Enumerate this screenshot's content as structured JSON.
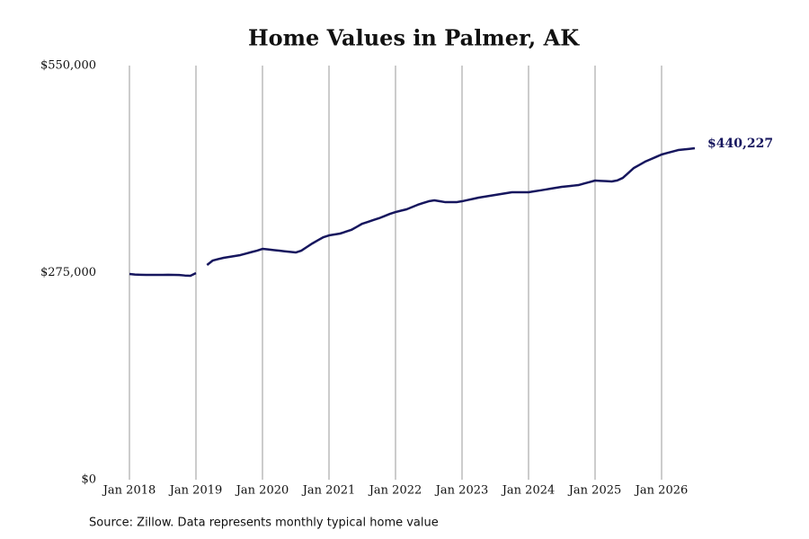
{
  "chart_data": {
    "type": "line",
    "title": "Home Values in Palmer, AK",
    "source": "Source: Zillow. Data represents monthly typical home value",
    "x": [
      "2018-01",
      "2018-02",
      "2018-03",
      "2018-04",
      "2018-05",
      "2018-06",
      "2018-07",
      "2018-08",
      "2018-09",
      "2018-10",
      "2018-11",
      "2018-12",
      "2019-01",
      "2019-02",
      "2019-03",
      "2019-04",
      "2019-05",
      "2019-06",
      "2019-07",
      "2019-08",
      "2019-09",
      "2019-10",
      "2019-11",
      "2019-12",
      "2020-01",
      "2020-02",
      "2020-03",
      "2020-04",
      "2020-05",
      "2020-06",
      "2020-07",
      "2020-08",
      "2020-09",
      "2020-10",
      "2020-11",
      "2020-12",
      "2021-01",
      "2021-02",
      "2021-03",
      "2021-04",
      "2021-05",
      "2021-06",
      "2021-07",
      "2021-08",
      "2021-09",
      "2021-10",
      "2021-11",
      "2021-12",
      "2022-01",
      "2022-02",
      "2022-03",
      "2022-04",
      "2022-05",
      "2022-06",
      "2022-07",
      "2022-08",
      "2022-09",
      "2022-10",
      "2022-11",
      "2022-12",
      "2023-01",
      "2023-02",
      "2023-03",
      "2023-04",
      "2023-05",
      "2023-06",
      "2023-07",
      "2023-08",
      "2023-09",
      "2023-10",
      "2023-11",
      "2023-12",
      "2024-01",
      "2024-02",
      "2024-03",
      "2024-04",
      "2024-05",
      "2024-06",
      "2024-07",
      "2024-08",
      "2024-09",
      "2024-10",
      "2024-11",
      "2024-12",
      "2025-01",
      "2025-02",
      "2025-03",
      "2025-04",
      "2025-05",
      "2025-06",
      "2025-07",
      "2025-08",
      "2025-09",
      "2025-10",
      "2025-11",
      "2025-12",
      "2026-01",
      "2026-02",
      "2026-03",
      "2026-04",
      "2026-05",
      "2026-06",
      "2026-07"
    ],
    "values": [
      273200,
      272500,
      272200,
      272000,
      272000,
      272000,
      272000,
      272100,
      272000,
      271800,
      271200,
      270800,
      274400,
      null,
      285100,
      291000,
      293000,
      294700,
      295900,
      297100,
      298300,
      300300,
      302300,
      304200,
      306600,
      305800,
      305000,
      304200,
      303400,
      302600,
      301800,
      304200,
      309000,
      313800,
      318000,
      322100,
      324500,
      325700,
      326900,
      329300,
      331700,
      335800,
      340000,
      342400,
      344800,
      347200,
      350100,
      353100,
      355500,
      357300,
      359100,
      362100,
      365100,
      367500,
      369800,
      371000,
      369800,
      368600,
      368600,
      368600,
      369800,
      371400,
      373000,
      374600,
      375800,
      377000,
      378200,
      379400,
      380600,
      381800,
      381800,
      381800,
      381800,
      383000,
      384100,
      385300,
      386500,
      387700,
      388900,
      389700,
      390500,
      391300,
      393300,
      395300,
      397300,
      396900,
      396500,
      396100,
      397400,
      400800,
      407400,
      414000,
      418100,
      422300,
      425500,
      428700,
      431900,
      433900,
      435800,
      437800,
      438600,
      439400,
      440227
    ],
    "color": "#16165e",
    "annotations": [
      {
        "x": "2026-07",
        "y": 440227,
        "label": "$440,227"
      }
    ],
    "ylim": [
      0,
      550000
    ],
    "yticks": [
      {
        "value": 0,
        "label": "$0"
      },
      {
        "value": 275000,
        "label": "$275,000"
      },
      {
        "value": 550000,
        "label": "$550,000"
      }
    ],
    "xticks": [
      {
        "value": "2018-01",
        "label": "Jan 2018"
      },
      {
        "value": "2019-01",
        "label": "Jan 2019"
      },
      {
        "value": "2020-01",
        "label": "Jan 2020"
      },
      {
        "value": "2021-01",
        "label": "Jan 2021"
      },
      {
        "value": "2022-01",
        "label": "Jan 2022"
      },
      {
        "value": "2023-01",
        "label": "Jan 2023"
      },
      {
        "value": "2024-01",
        "label": "Jan 2024"
      },
      {
        "value": "2025-01",
        "label": "Jan 2025"
      },
      {
        "value": "2026-01",
        "label": "Jan 2026"
      }
    ],
    "grid": true
  }
}
